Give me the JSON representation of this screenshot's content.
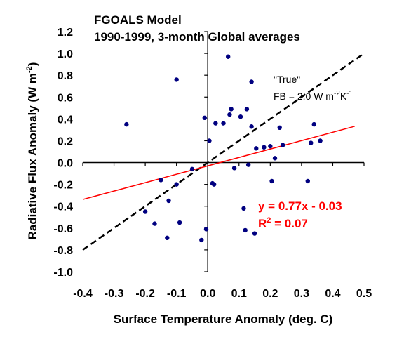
{
  "chart_data": {
    "type": "scatter",
    "title_lines": [
      "FGOALS Model",
      "1990-1999, 3-month Global averages"
    ],
    "xlabel": "Surface Temperature Anomaly (deg. C)",
    "ylabel_main": "Radiative Flux Anomaly (W m",
    "ylabel_sup": "-2",
    "ylabel_end": ")",
    "xlim": [
      -0.4,
      0.5
    ],
    "ylim": [
      -1.0,
      1.2
    ],
    "x_ticks": [
      "-0.4",
      "-0.3",
      "-0.2",
      "-0.1",
      "0.0",
      "0.1",
      "0.2",
      "0.3",
      "0.4",
      "0.5"
    ],
    "x_tick_values": [
      -0.4,
      -0.3,
      -0.2,
      -0.1,
      0.0,
      0.1,
      0.2,
      0.3,
      0.4,
      0.5
    ],
    "y_ticks": [
      "1.2",
      "1.0",
      "0.8",
      "0.6",
      "0.4",
      "0.2",
      "0.0",
      "-0.2",
      "-0.4",
      "-0.6",
      "-0.8",
      "-1.0"
    ],
    "y_tick_values": [
      1.2,
      1.0,
      0.8,
      0.6,
      0.4,
      0.2,
      0.0,
      -0.2,
      -0.4,
      -0.6,
      -0.8,
      -1.0
    ],
    "point_color": "#000080",
    "points": [
      [
        -0.26,
        0.35
      ],
      [
        -0.1,
        0.76
      ],
      [
        -0.2,
        -0.45
      ],
      [
        -0.17,
        -0.56
      ],
      [
        -0.15,
        -0.16
      ],
      [
        -0.13,
        -0.69
      ],
      [
        -0.125,
        -0.35
      ],
      [
        -0.1,
        -0.2
      ],
      [
        -0.09,
        -0.55
      ],
      [
        -0.05,
        -0.06
      ],
      [
        -0.02,
        -0.71
      ],
      [
        -0.01,
        0.41
      ],
      [
        -0.005,
        -0.61
      ],
      [
        0.005,
        0.2
      ],
      [
        0.015,
        -0.19
      ],
      [
        0.02,
        -0.2
      ],
      [
        0.025,
        0.36
      ],
      [
        0.05,
        0.36
      ],
      [
        0.065,
        0.97
      ],
      [
        0.07,
        0.44
      ],
      [
        0.075,
        0.49
      ],
      [
        0.085,
        -0.05
      ],
      [
        0.105,
        0.42
      ],
      [
        0.115,
        -0.42
      ],
      [
        0.12,
        -0.62
      ],
      [
        0.125,
        0.49
      ],
      [
        0.13,
        -0.02
      ],
      [
        0.14,
        0.74
      ],
      [
        0.14,
        0.33
      ],
      [
        0.15,
        -0.65
      ],
      [
        0.155,
        0.13
      ],
      [
        0.18,
        0.14
      ],
      [
        0.2,
        0.15
      ],
      [
        0.205,
        -0.17
      ],
      [
        0.215,
        0.04
      ],
      [
        0.23,
        0.32
      ],
      [
        0.24,
        0.16
      ],
      [
        0.32,
        -0.17
      ],
      [
        0.33,
        0.18
      ],
      [
        0.34,
        0.35
      ],
      [
        0.36,
        0.2
      ]
    ],
    "fit_line": {
      "slope": 0.77,
      "intercept": -0.03,
      "x_range": [
        -0.4,
        0.47
      ],
      "color": "#ff0000"
    },
    "true_line": {
      "slope": 2.0,
      "intercept": 0.0,
      "x_range": [
        -0.4,
        0.5
      ],
      "color": "#000000"
    },
    "true_label": "\"True\"",
    "fb_label_pre": "FB = 2.0 W m",
    "fb_sup1": "-2",
    "fb_mid": "K",
    "fb_sup2": "-1",
    "fit_equation": "y = 0.77x - 0.03",
    "r2_pre": "R",
    "r2_sup": "2",
    "r2_post": " = 0.07",
    "fit_text_color": "#ff0000",
    "grid": false
  }
}
